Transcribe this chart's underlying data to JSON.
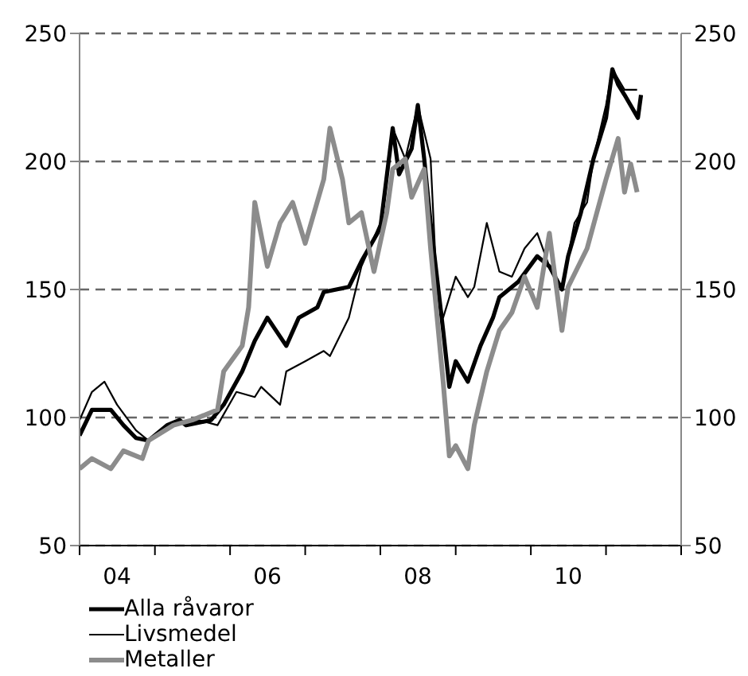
{
  "chart_data": {
    "type": "line",
    "xlim": [
      "2004-01",
      "2012-01"
    ],
    "xticks": [
      {
        "value": "2004-01",
        "label": null
      },
      {
        "value": "2004-07",
        "label": "04"
      },
      {
        "value": "2005-01",
        "label": null
      },
      {
        "value": "2006-01",
        "label": null
      },
      {
        "value": "2006-07",
        "label": "06"
      },
      {
        "value": "2007-01",
        "label": null
      },
      {
        "value": "2008-01",
        "label": null
      },
      {
        "value": "2008-07",
        "label": "08"
      },
      {
        "value": "2009-01",
        "label": null
      },
      {
        "value": "2010-01",
        "label": null
      },
      {
        "value": "2010-07",
        "label": "10"
      },
      {
        "value": "2011-01",
        "label": null
      },
      {
        "value": "2012-01",
        "label": null
      }
    ],
    "ylim": [
      50,
      250
    ],
    "yticks": [
      50,
      100,
      150,
      200,
      250
    ],
    "y2lim": [
      50,
      250
    ],
    "y2ticks": [
      50,
      100,
      150,
      200,
      250
    ],
    "grid": "y",
    "legend": "bottom left",
    "line_style": "solid",
    "marker": "none",
    "series": [
      {
        "name": "Alla råvaror",
        "color": "#000000",
        "x": [
          "2004-01",
          "2004-03",
          "2004-06",
          "2004-08",
          "2004-10",
          "2004-12",
          "2005-03",
          "2005-05",
          "2005-06",
          "2005-10",
          "2005-12",
          "2006-03",
          "2006-05",
          "2006-07",
          "2006-10",
          "2006-12",
          "2007-03",
          "2007-04",
          "2007-08",
          "2007-10",
          "2008-01",
          "2008-03",
          "2008-04",
          "2008-06",
          "2008-07",
          "2008-08",
          "2008-09",
          "2008-11",
          "2008-12",
          "2009-01",
          "2009-03",
          "2009-05",
          "2009-07",
          "2009-08",
          "2009-11",
          "2010-02",
          "2010-04",
          "2010-06",
          "2010-07",
          "2010-09",
          "2010-11",
          "2011-01",
          "2011-02",
          "2011-03",
          "2011-04",
          "2011-06-05",
          "2011-06-20"
        ],
        "values": [
          93,
          103,
          103,
          97,
          92,
          91,
          97,
          99,
          97,
          99,
          105,
          118,
          130,
          139,
          128,
          139,
          143,
          149,
          151,
          161,
          174,
          213,
          195,
          205,
          222,
          201,
          176,
          134,
          112,
          122,
          114,
          128,
          139,
          147,
          153,
          163,
          159,
          150,
          163,
          180,
          201,
          217,
          236,
          230,
          226,
          217,
          226
        ]
      },
      {
        "name": "Livsmedel",
        "color": "#000000",
        "x": [
          "2004-01",
          "2004-03",
          "2004-05",
          "2004-07",
          "2004-10",
          "2004-12",
          "2005-03",
          "2005-08",
          "2005-11",
          "2006-02",
          "2006-05",
          "2006-06",
          "2006-09",
          "2006-10",
          "2007-01",
          "2007-04",
          "2007-05",
          "2007-08",
          "2007-10",
          "2008-01",
          "2008-03",
          "2008-05",
          "2008-07",
          "2008-09",
          "2008-10",
          "2008-11",
          "2009-01",
          "2009-03",
          "2009-04",
          "2009-06",
          "2009-08",
          "2009-10",
          "2009-12",
          "2010-02",
          "2010-04",
          "2010-06",
          "2010-08",
          "2010-10",
          "2010-11",
          "2011-01",
          "2011-02",
          "2011-04",
          "2011-06"
        ],
        "values": [
          99,
          110,
          114,
          105,
          95,
          91,
          97,
          99,
          97,
          110,
          108,
          112,
          105,
          118,
          122,
          126,
          124,
          139,
          159,
          176,
          213,
          201,
          222,
          201,
          151,
          139,
          155,
          147,
          151,
          176,
          157,
          155,
          166,
          172,
          159,
          151,
          176,
          184,
          201,
          222,
          236,
          228,
          228
        ]
      },
      {
        "name": "Metaller",
        "color": "#8c8c8c",
        "x": [
          "2004-01",
          "2004-03",
          "2004-06",
          "2004-08",
          "2004-11",
          "2004-12",
          "2005-04",
          "2005-07",
          "2005-11",
          "2005-12",
          "2006-03",
          "2006-04",
          "2006-05",
          "2006-07",
          "2006-09",
          "2006-11",
          "2007-01",
          "2007-04",
          "2007-05",
          "2007-07",
          "2007-08",
          "2007-10",
          "2007-12",
          "2008-02",
          "2008-03",
          "2008-05",
          "2008-06",
          "2008-08",
          "2008-09",
          "2008-11",
          "2008-12",
          "2009-01",
          "2009-03",
          "2009-04",
          "2009-06",
          "2009-08",
          "2009-10",
          "2009-12",
          "2010-02",
          "2010-04",
          "2010-06",
          "2010-07",
          "2010-10",
          "2010-12",
          "2011-01",
          "2011-03",
          "2011-04",
          "2011-05",
          "2011-06"
        ],
        "values": [
          80,
          84,
          80,
          87,
          84,
          91,
          97,
          99,
          103,
          118,
          128,
          143,
          184,
          159,
          176,
          184,
          168,
          193,
          213,
          193,
          176,
          180,
          157,
          180,
          197,
          201,
          186,
          197,
          166,
          114,
          85,
          89,
          80,
          97,
          118,
          134,
          141,
          155,
          143,
          172,
          134,
          151,
          166,
          184,
          193,
          209,
          188,
          199,
          188
        ]
      }
    ]
  }
}
